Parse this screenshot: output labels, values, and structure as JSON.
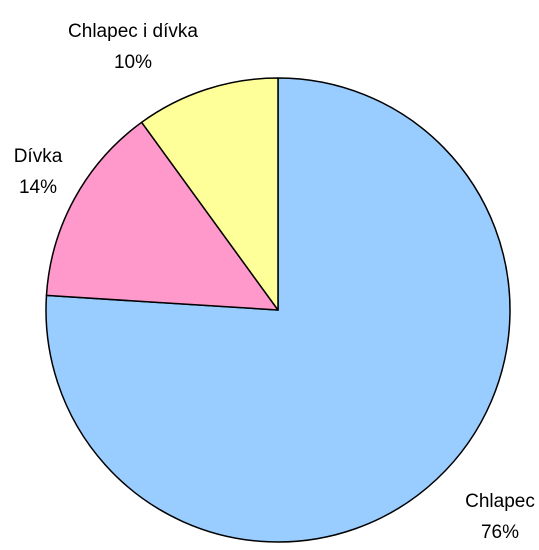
{
  "chart_data": {
    "type": "pie",
    "title": "",
    "start_angle_deg": 0,
    "direction": "clockwise",
    "slices": [
      {
        "label": "Chlapec",
        "value": 76,
        "value_label": "76%",
        "color": "#99CCFF"
      },
      {
        "label": "Dívka",
        "value": 14,
        "value_label": "14%",
        "color": "#FF99CC"
      },
      {
        "label": "Chlapec i dívka",
        "value": 10,
        "value_label": "10%",
        "color": "#FFFF99"
      }
    ],
    "stroke_color": "#000000",
    "background_color": "#FFFFFF"
  }
}
